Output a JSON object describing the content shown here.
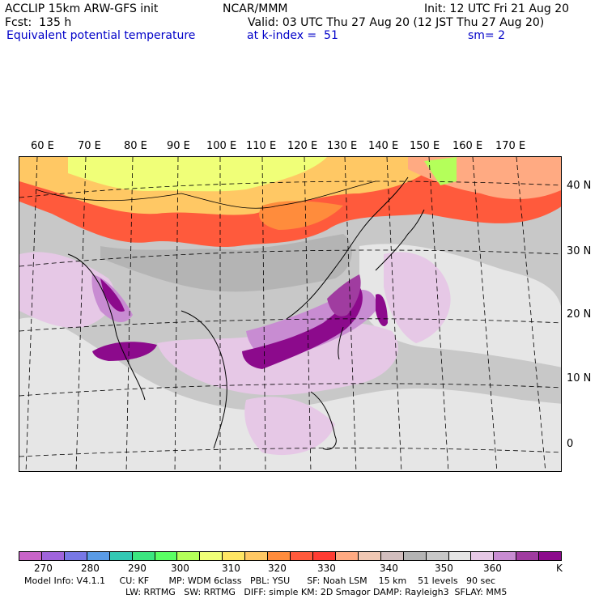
{
  "header": {
    "model": "ACCLIP 15km ARW-GFS init",
    "forecast": "Fcst:  135 h",
    "field": "Equivalent potential temperature",
    "center": "NCAR/MMM",
    "valid": "Valid: 03 UTC Thu 27 Aug 20 (12 JST Thu 27 Aug 20)",
    "level": "at k-index =  51",
    "init": "Init: 12 UTC Fri 21 Aug 20",
    "smoothing": "sm= 2"
  },
  "lon_labels": [
    "60 E",
    "70 E",
    "80 E",
    "90 E",
    "100 E",
    "110 E",
    "120 E",
    "130 E",
    "140 E",
    "150 E",
    "160 E",
    "170 E"
  ],
  "lat_labels": [
    "40 N",
    "30 N",
    "20 N",
    "10 N",
    "0"
  ],
  "colorbar": {
    "colors": [
      "#c864c8",
      "#a064dc",
      "#7878e6",
      "#5a9be6",
      "#32c8b4",
      "#3ce680",
      "#5aff64",
      "#b4ff5a",
      "#f0ff78",
      "#ffe664",
      "#ffc864",
      "#ff8c3c",
      "#ff5a3c",
      "#ff3c32",
      "#ffaa82",
      "#f0c8b4",
      "#d2bebe",
      "#b4b4b4",
      "#c8c8c8",
      "#e6e6e6",
      "#e6c8e6",
      "#c88cd2",
      "#a03ca0",
      "#8c0a8c"
    ],
    "ticks": [
      "270",
      "280",
      "290",
      "300",
      "310",
      "320",
      "330",
      "340",
      "350",
      "360"
    ],
    "unit": "K"
  },
  "footer": {
    "line1": "Model Info: V4.1.1     CU: KF       MP: WDM 6class   PBL: YSU      SF: Noah LSM    15 km    51 levels   90 sec",
    "line2": "LW: RRTMG   SW: RRTMG   DIFF: simple KM: 2D Smagor DAMP: Rayleigh3  SFLAY: MM5"
  }
}
